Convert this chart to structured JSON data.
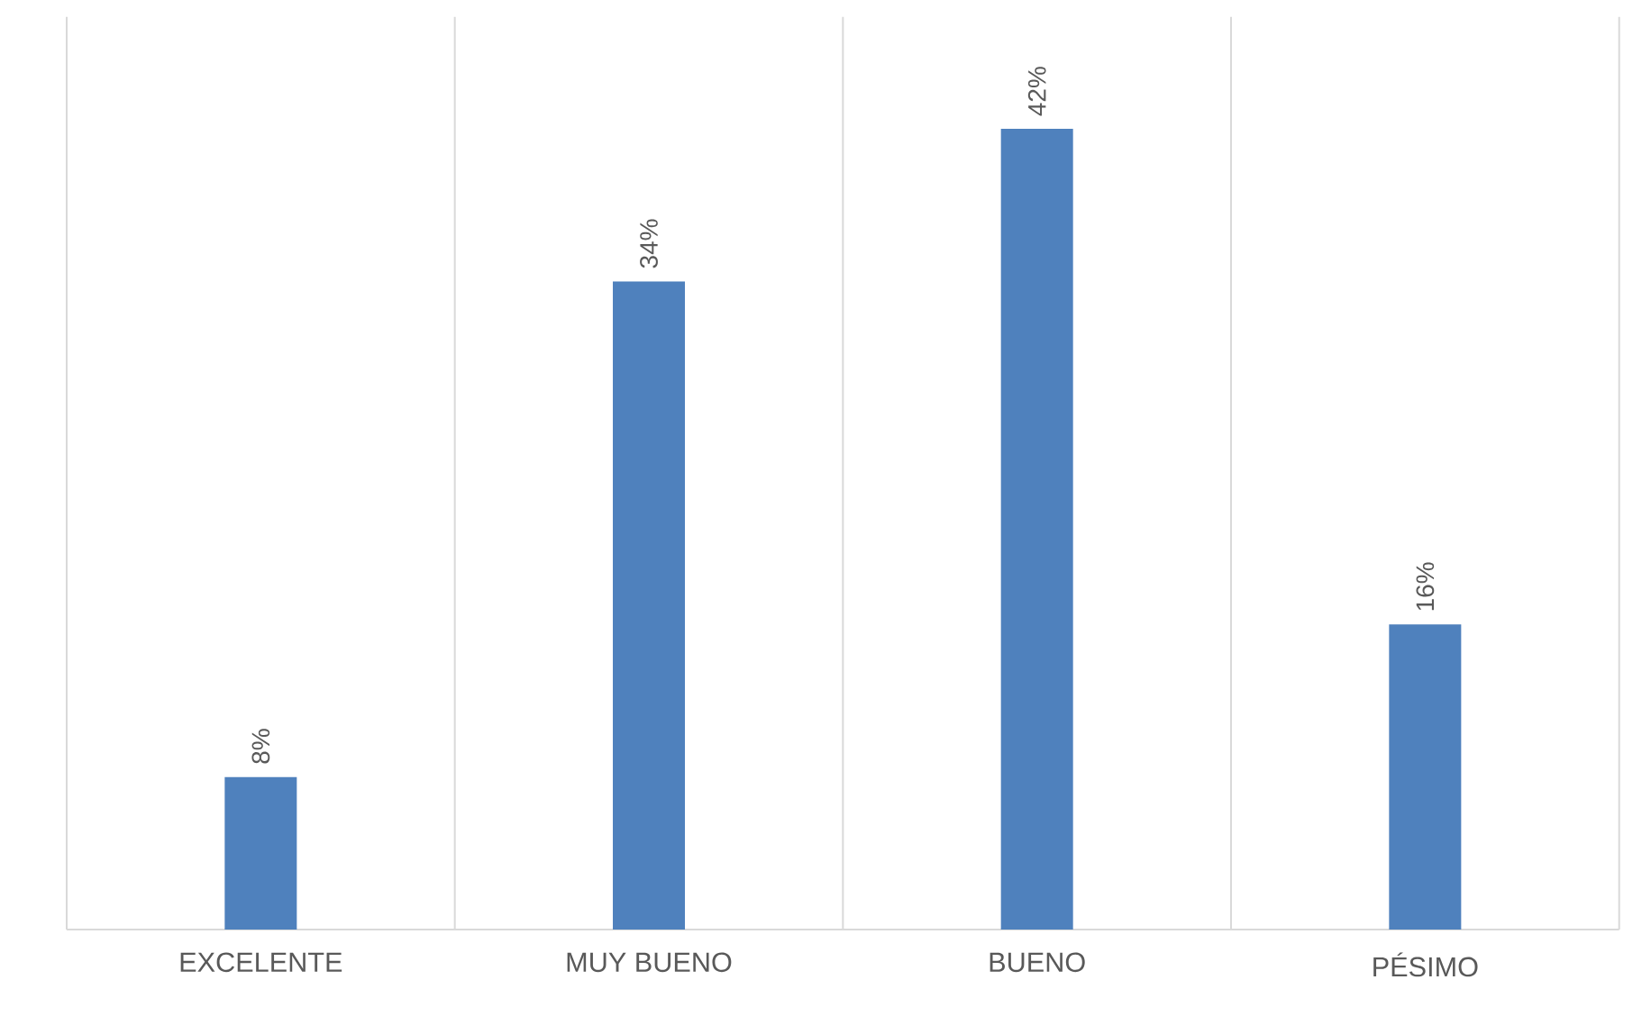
{
  "chart_data": {
    "type": "bar",
    "categories": [
      "EXCELENTE",
      "MUY BUENO",
      "BUENO",
      "PÉSIMO"
    ],
    "values": [
      8,
      34,
      42,
      16
    ],
    "value_labels": [
      "8%",
      "34%",
      "42%",
      "16%"
    ],
    "color": "#4f81bd",
    "grid": "x"
  }
}
